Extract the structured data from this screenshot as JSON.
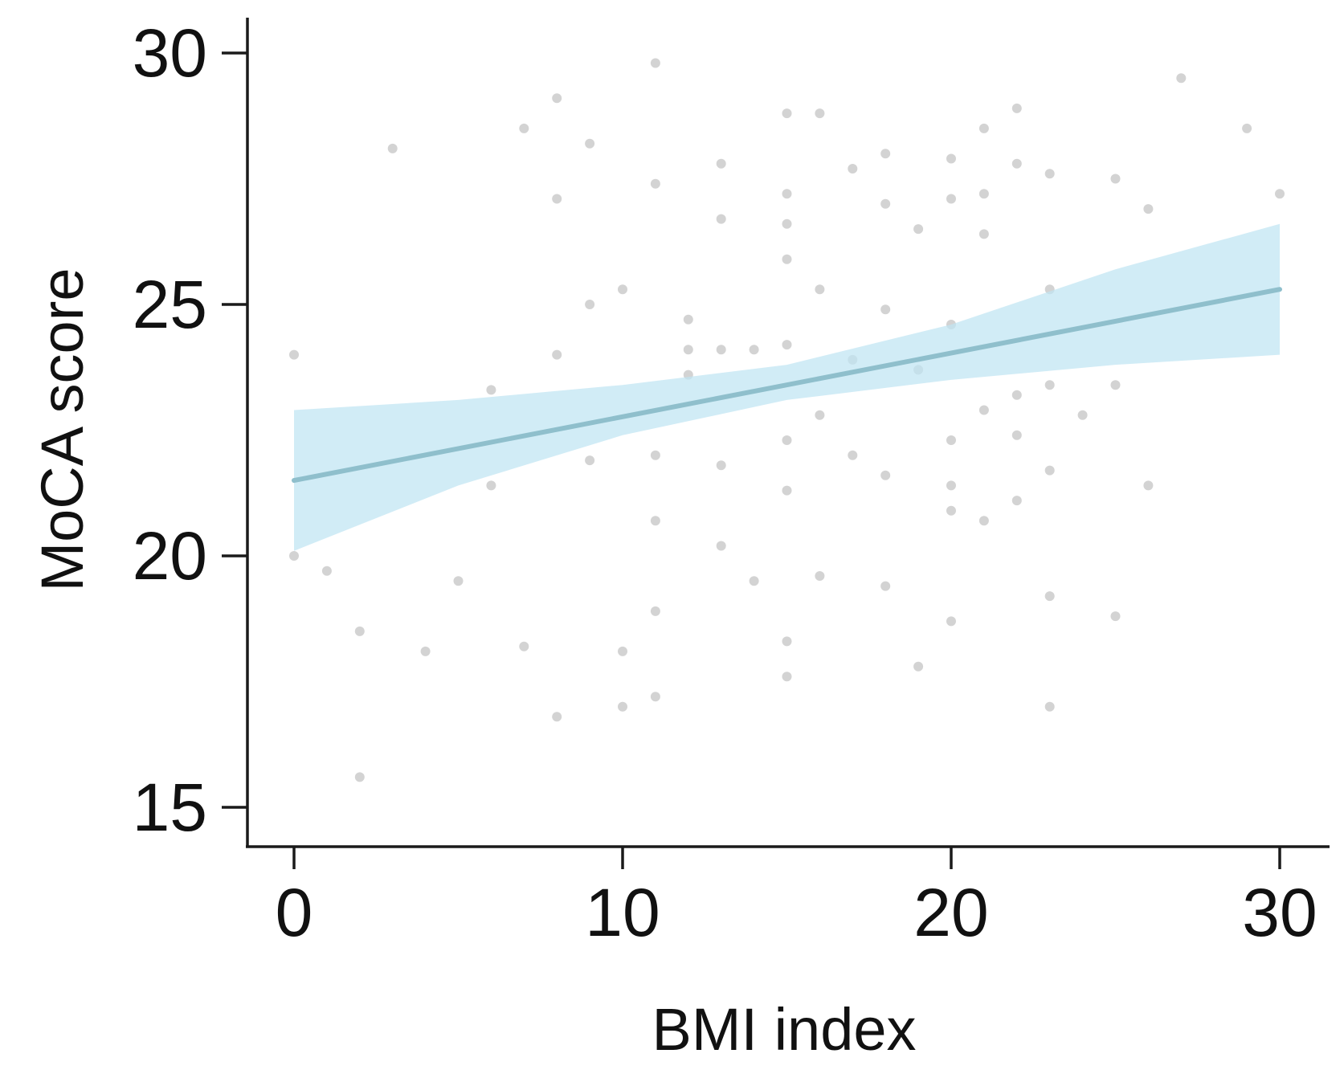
{
  "chart_data": {
    "type": "scatter",
    "xlabel": "BMI index",
    "ylabel": "MoCA score",
    "xlim": [
      -1.5,
      31.5
    ],
    "ylim": [
      14.2,
      31.2
    ],
    "xticks": [
      0,
      10,
      20,
      30
    ],
    "yticks": [
      15,
      20,
      25,
      30
    ],
    "xtick_labels": [
      "0",
      "10",
      "20",
      "30"
    ],
    "ytick_labels": [
      "15",
      "20",
      "25",
      "30"
    ],
    "grid": false,
    "legend": "none",
    "colors": {
      "points": "#c4c4c4",
      "line": "#8fbfcc",
      "band": "#bfe5f2",
      "axis": "#1a1a1a"
    },
    "points": [
      [
        0,
        24
      ],
      [
        0,
        20
      ],
      [
        1,
        19.7
      ],
      [
        2,
        18.5
      ],
      [
        2,
        15.6
      ],
      [
        3,
        28.1
      ],
      [
        4,
        18.1
      ],
      [
        5,
        19.5
      ],
      [
        6,
        23.3
      ],
      [
        6,
        21.4
      ],
      [
        7,
        28.5
      ],
      [
        7,
        18.2
      ],
      [
        8,
        29.1
      ],
      [
        8,
        27.1
      ],
      [
        8,
        24
      ],
      [
        8,
        16.8
      ],
      [
        9,
        28.2
      ],
      [
        9,
        25
      ],
      [
        9,
        21.9
      ],
      [
        10,
        25.3
      ],
      [
        10,
        18.1
      ],
      [
        10,
        17
      ],
      [
        11,
        29.8
      ],
      [
        11,
        27.4
      ],
      [
        11,
        22
      ],
      [
        11,
        20.7
      ],
      [
        11,
        18.9
      ],
      [
        11,
        17.2
      ],
      [
        12,
        24.7
      ],
      [
        12,
        24.1
      ],
      [
        12,
        23.6
      ],
      [
        13,
        27.8
      ],
      [
        13,
        26.7
      ],
      [
        13,
        24.1
      ],
      [
        13,
        21.8
      ],
      [
        13,
        20.2
      ],
      [
        14,
        24.1
      ],
      [
        14,
        19.5
      ],
      [
        15,
        28.8
      ],
      [
        15,
        27.2
      ],
      [
        15,
        26.6
      ],
      [
        15,
        25.9
      ],
      [
        15,
        24.2
      ],
      [
        15,
        22.3
      ],
      [
        15,
        21.3
      ],
      [
        15,
        18.3
      ],
      [
        15,
        17.6
      ],
      [
        16,
        28.8
      ],
      [
        16,
        25.3
      ],
      [
        16,
        22.8
      ],
      [
        16,
        19.6
      ],
      [
        17,
        27.7
      ],
      [
        17,
        22
      ],
      [
        17,
        23.9
      ],
      [
        18,
        28
      ],
      [
        18,
        27
      ],
      [
        18,
        24.9
      ],
      [
        18,
        21.6
      ],
      [
        18,
        19.4
      ],
      [
        19,
        26.5
      ],
      [
        19,
        23.7
      ],
      [
        19,
        17.8
      ],
      [
        20,
        27.9
      ],
      [
        20,
        27.1
      ],
      [
        20,
        24.6
      ],
      [
        20,
        22.3
      ],
      [
        20,
        21.4
      ],
      [
        20,
        20.9
      ],
      [
        20,
        18.7
      ],
      [
        21,
        28.5
      ],
      [
        21,
        27.2
      ],
      [
        21,
        26.4
      ],
      [
        21,
        22.9
      ],
      [
        21,
        20.7
      ],
      [
        22,
        28.9
      ],
      [
        22,
        27.8
      ],
      [
        22,
        23.2
      ],
      [
        22,
        22.4
      ],
      [
        22,
        21.1
      ],
      [
        23,
        27.6
      ],
      [
        23,
        25.3
      ],
      [
        23,
        23.4
      ],
      [
        23,
        21.7
      ],
      [
        23,
        19.2
      ],
      [
        23,
        17
      ],
      [
        24,
        22.8
      ],
      [
        25,
        27.5
      ],
      [
        25,
        23.4
      ],
      [
        25,
        18.8
      ],
      [
        26,
        26.9
      ],
      [
        26,
        21.4
      ],
      [
        27,
        29.5
      ],
      [
        29,
        28.5
      ],
      [
        30,
        27.2
      ]
    ],
    "fit_line": {
      "x": [
        0,
        30
      ],
      "y": [
        21.5,
        25.3
      ]
    },
    "confidence_band": {
      "x": [
        0,
        5,
        10,
        15,
        20,
        25,
        30
      ],
      "lower": [
        20.1,
        21.4,
        22.4,
        23.1,
        23.5,
        23.8,
        24
      ],
      "upper": [
        22.9,
        23.1,
        23.4,
        23.8,
        24.6,
        25.7,
        26.6
      ]
    }
  }
}
